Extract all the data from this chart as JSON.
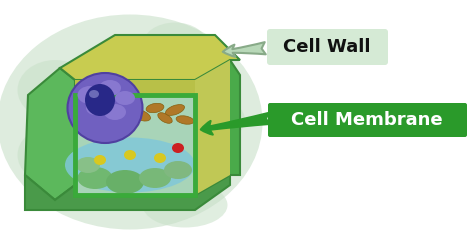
{
  "bg_color": "#ffffff",
  "outer_blob_color": "#d0e8d0",
  "figsize": [
    4.74,
    2.37
  ],
  "dpi": 100,
  "label_cell_wall": "Cell Wall",
  "label_cell_membrane": "Cell Membrane",
  "arrow1_color": "#88bb88",
  "arrow2_color": "#2a9a2a",
  "label1_bg": "#d8ecd8",
  "label2_bg": "#2a9a2a",
  "label2_text_color": "#ffffff",
  "label1_text_color": "#111111"
}
